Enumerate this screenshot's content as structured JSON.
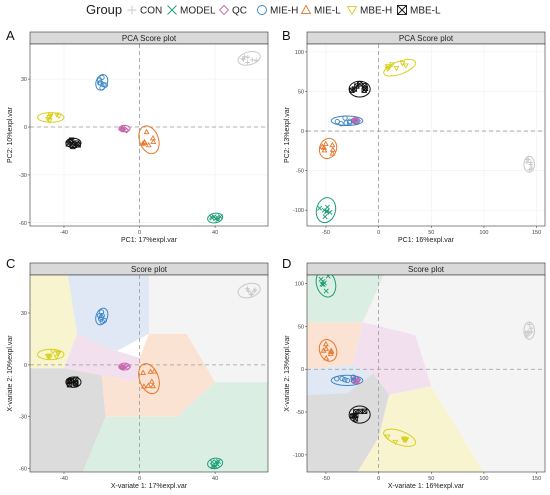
{
  "legend": {
    "title": "Group",
    "items": [
      {
        "label": "CON",
        "color": "#c8c8c8",
        "shape": "plus"
      },
      {
        "label": "MODEL",
        "color": "#1b9e77",
        "shape": "x"
      },
      {
        "label": "QC",
        "color": "#c767b0",
        "shape": "diamond"
      },
      {
        "label": "MIE-H",
        "color": "#3d86c8",
        "shape": "circle"
      },
      {
        "label": "MIE-L",
        "color": "#e6782c",
        "shape": "triangle"
      },
      {
        "label": "MBE-H",
        "color": "#d9cf1c",
        "shape": "triangle-down"
      },
      {
        "label": "MBE-L",
        "color": "#111111",
        "shape": "boxx"
      }
    ]
  },
  "chart_data": [
    {
      "panel": "A",
      "type": "scatter",
      "title": "PCA Score plot",
      "xlabel": "PC1: 17%expl.var",
      "ylabel": "PC2: 10%expl.var",
      "xlim": [
        -58,
        68
      ],
      "ylim": [
        -62,
        52
      ],
      "xticks": [
        -40,
        0,
        40
      ],
      "yticks": [
        -60,
        -30,
        0,
        30
      ],
      "background_regions": false,
      "grid": true,
      "series": [
        {
          "name": "CON",
          "center": [
            58,
            43
          ],
          "ellipse": [
            6,
            4,
            -15
          ]
        },
        {
          "name": "MODEL",
          "center": [
            40,
            -57
          ],
          "ellipse": [
            4,
            3,
            -10
          ]
        },
        {
          "name": "QC",
          "center": [
            -8,
            -1
          ],
          "ellipse": [
            3,
            2,
            0
          ]
        },
        {
          "name": "MIE-H",
          "center": [
            -20,
            28
          ],
          "ellipse": [
            3,
            5,
            20
          ]
        },
        {
          "name": "MIE-L",
          "center": [
            5,
            -8
          ],
          "ellipse": [
            5,
            9,
            -20
          ]
        },
        {
          "name": "MBE-H",
          "center": [
            -47,
            6
          ],
          "ellipse": [
            7,
            3,
            0
          ]
        },
        {
          "name": "MBE-L",
          "center": [
            -35,
            -10
          ],
          "ellipse": [
            4,
            3,
            0
          ]
        }
      ]
    },
    {
      "panel": "B",
      "type": "scatter",
      "title": "PCA Score plot",
      "xlabel": "PC1: 16%expl.var",
      "ylabel": "PC2: 13%expl.var",
      "xlim": [
        -68,
        158
      ],
      "ylim": [
        -120,
        110
      ],
      "xticks": [
        -50,
        0,
        50,
        100,
        150
      ],
      "yticks": [
        -100,
        -50,
        0,
        50,
        100
      ],
      "background_regions": false,
      "grid": true,
      "series": [
        {
          "name": "CON",
          "center": [
            143,
            -42
          ],
          "ellipse": [
            5,
            10,
            0
          ]
        },
        {
          "name": "MODEL",
          "center": [
            -50,
            -100
          ],
          "ellipse": [
            9,
            16,
            15
          ]
        },
        {
          "name": "QC",
          "center": [
            -22,
            13
          ],
          "ellipse": [
            4,
            4,
            0
          ]
        },
        {
          "name": "MIE-H",
          "center": [
            -30,
            13
          ],
          "ellipse": [
            15,
            6,
            0
          ]
        },
        {
          "name": "MIE-L",
          "center": [
            -48,
            -22
          ],
          "ellipse": [
            8,
            13,
            20
          ]
        },
        {
          "name": "MBE-H",
          "center": [
            20,
            80
          ],
          "ellipse": [
            16,
            8,
            -20
          ]
        },
        {
          "name": "MBE-L",
          "center": [
            -18,
            53
          ],
          "ellipse": [
            10,
            10,
            0
          ]
        }
      ]
    },
    {
      "panel": "C",
      "type": "scatter",
      "title": "Score plot",
      "xlabel": "X-variate 1: 17%expl.var",
      "ylabel": "X-variate 2: 10%expl.var",
      "xlim": [
        -58,
        68
      ],
      "ylim": [
        -62,
        52
      ],
      "xticks": [
        -40,
        0,
        40
      ],
      "yticks": [
        -60,
        -30,
        0,
        30
      ],
      "background_regions": true,
      "grid": false,
      "series": [
        {
          "name": "CON",
          "center": [
            58,
            43
          ],
          "ellipse": [
            6,
            4,
            -15
          ]
        },
        {
          "name": "MODEL",
          "center": [
            40,
            -57
          ],
          "ellipse": [
            4,
            3,
            -10
          ]
        },
        {
          "name": "QC",
          "center": [
            -8,
            -1
          ],
          "ellipse": [
            3,
            2,
            0
          ]
        },
        {
          "name": "MIE-H",
          "center": [
            -20,
            28
          ],
          "ellipse": [
            3,
            5,
            20
          ]
        },
        {
          "name": "MIE-L",
          "center": [
            5,
            -8
          ],
          "ellipse": [
            5,
            9,
            -20
          ]
        },
        {
          "name": "MBE-H",
          "center": [
            -47,
            6
          ],
          "ellipse": [
            7,
            3,
            0
          ]
        },
        {
          "name": "MBE-L",
          "center": [
            -35,
            -10
          ],
          "ellipse": [
            4,
            3,
            0
          ]
        }
      ]
    },
    {
      "panel": "D",
      "type": "scatter",
      "title": "Score plot",
      "xlabel": "X-variate 1: 16%expl.var",
      "ylabel": "X-variate 2: 13%expl.var",
      "xlim": [
        -68,
        158
      ],
      "ylim": [
        -120,
        110
      ],
      "xticks": [
        -50,
        0,
        50,
        100,
        150
      ],
      "yticks": [
        -100,
        -50,
        0,
        50,
        100
      ],
      "background_regions": true,
      "grid": false,
      "series": [
        {
          "name": "CON",
          "center": [
            143,
            45
          ],
          "ellipse": [
            5,
            10,
            0
          ]
        },
        {
          "name": "MODEL",
          "center": [
            -50,
            100
          ],
          "ellipse": [
            9,
            16,
            -15
          ]
        },
        {
          "name": "QC",
          "center": [
            -22,
            -13
          ],
          "ellipse": [
            4,
            4,
            0
          ]
        },
        {
          "name": "MIE-H",
          "center": [
            -30,
            -13
          ],
          "ellipse": [
            15,
            6,
            0
          ]
        },
        {
          "name": "MIE-L",
          "center": [
            -48,
            22
          ],
          "ellipse": [
            8,
            13,
            -20
          ]
        },
        {
          "name": "MBE-H",
          "center": [
            20,
            -80
          ],
          "ellipse": [
            16,
            8,
            20
          ]
        },
        {
          "name": "MBE-L",
          "center": [
            -18,
            -53
          ],
          "ellipse": [
            10,
            10,
            0
          ]
        }
      ]
    }
  ]
}
